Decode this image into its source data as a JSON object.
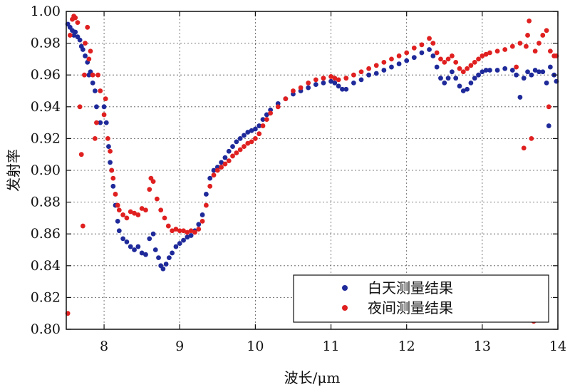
{
  "chart_data": {
    "type": "scatter",
    "title": "",
    "xlabel": "波长/μm",
    "ylabel": "发射率",
    "xlim": [
      7.5,
      14
    ],
    "ylim": [
      0.8,
      1.0
    ],
    "xticks": [
      8,
      9,
      10,
      11,
      12,
      13,
      14
    ],
    "yticks": [
      0.8,
      0.82,
      0.84,
      0.86,
      0.88,
      0.9,
      0.92,
      0.94,
      0.96,
      0.98,
      1.0
    ],
    "grid": true,
    "legend_position": "bottom-right",
    "series": [
      {
        "name": "白天测量结果",
        "color": "#1f2a9a",
        "points": [
          [
            7.52,
            0.992
          ],
          [
            7.55,
            0.99
          ],
          [
            7.58,
            0.988
          ],
          [
            7.6,
            0.985
          ],
          [
            7.62,
            0.987
          ],
          [
            7.65,
            0.984
          ],
          [
            7.68,
            0.982
          ],
          [
            7.7,
            0.978
          ],
          [
            7.72,
            0.976
          ],
          [
            7.75,
            0.972
          ],
          [
            7.78,
            0.968
          ],
          [
            7.8,
            0.96
          ],
          [
            7.82,
            0.962
          ],
          [
            7.85,
            0.955
          ],
          [
            7.88,
            0.95
          ],
          [
            7.9,
            0.94
          ],
          [
            7.95,
            0.93
          ],
          [
            8.0,
            0.94
          ],
          [
            8.03,
            0.93
          ],
          [
            8.06,
            0.915
          ],
          [
            8.08,
            0.905
          ],
          [
            8.1,
            0.9
          ],
          [
            8.12,
            0.89
          ],
          [
            8.15,
            0.878
          ],
          [
            8.18,
            0.868
          ],
          [
            8.2,
            0.862
          ],
          [
            8.25,
            0.857
          ],
          [
            8.3,
            0.855
          ],
          [
            8.35,
            0.852
          ],
          [
            8.4,
            0.85
          ],
          [
            8.45,
            0.852
          ],
          [
            8.5,
            0.848
          ],
          [
            8.55,
            0.847
          ],
          [
            8.6,
            0.857
          ],
          [
            8.65,
            0.86
          ],
          [
            8.68,
            0.85
          ],
          [
            8.72,
            0.845
          ],
          [
            8.75,
            0.84
          ],
          [
            8.78,
            0.838
          ],
          [
            8.82,
            0.841
          ],
          [
            8.86,
            0.845
          ],
          [
            8.9,
            0.848
          ],
          [
            8.95,
            0.852
          ],
          [
            9.0,
            0.854
          ],
          [
            9.05,
            0.856
          ],
          [
            9.1,
            0.858
          ],
          [
            9.15,
            0.859
          ],
          [
            9.2,
            0.862
          ],
          [
            9.25,
            0.866
          ],
          [
            9.3,
            0.872
          ],
          [
            9.35,
            0.885
          ],
          [
            9.4,
            0.895
          ],
          [
            9.45,
            0.9
          ],
          [
            9.5,
            0.902
          ],
          [
            9.55,
            0.905
          ],
          [
            9.6,
            0.908
          ],
          [
            9.65,
            0.912
          ],
          [
            9.7,
            0.915
          ],
          [
            9.75,
            0.918
          ],
          [
            9.8,
            0.92
          ],
          [
            9.85,
            0.922
          ],
          [
            9.9,
            0.924
          ],
          [
            9.95,
            0.925
          ],
          [
            10.0,
            0.926
          ],
          [
            10.05,
            0.928
          ],
          [
            10.1,
            0.932
          ],
          [
            10.15,
            0.935
          ],
          [
            10.2,
            0.938
          ],
          [
            10.3,
            0.942
          ],
          [
            10.4,
            0.945
          ],
          [
            10.5,
            0.948
          ],
          [
            10.6,
            0.95
          ],
          [
            10.7,
            0.952
          ],
          [
            10.8,
            0.954
          ],
          [
            10.9,
            0.955
          ],
          [
            11.0,
            0.956
          ],
          [
            11.05,
            0.955
          ],
          [
            11.1,
            0.953
          ],
          [
            11.15,
            0.951
          ],
          [
            11.2,
            0.951
          ],
          [
            11.3,
            0.955
          ],
          [
            11.4,
            0.957
          ],
          [
            11.5,
            0.96
          ],
          [
            11.6,
            0.961
          ],
          [
            11.7,
            0.963
          ],
          [
            11.8,
            0.965
          ],
          [
            11.9,
            0.967
          ],
          [
            12.0,
            0.969
          ],
          [
            12.1,
            0.971
          ],
          [
            12.2,
            0.974
          ],
          [
            12.3,
            0.976
          ],
          [
            12.35,
            0.972
          ],
          [
            12.4,
            0.965
          ],
          [
            12.45,
            0.958
          ],
          [
            12.5,
            0.955
          ],
          [
            12.55,
            0.958
          ],
          [
            12.6,
            0.962
          ],
          [
            12.65,
            0.958
          ],
          [
            12.7,
            0.953
          ],
          [
            12.75,
            0.95
          ],
          [
            12.8,
            0.951
          ],
          [
            12.85,
            0.955
          ],
          [
            12.9,
            0.958
          ],
          [
            12.95,
            0.96
          ],
          [
            13.0,
            0.962
          ],
          [
            13.05,
            0.963
          ],
          [
            13.1,
            0.963
          ],
          [
            13.2,
            0.963
          ],
          [
            13.3,
            0.964
          ],
          [
            13.4,
            0.963
          ],
          [
            13.45,
            0.96
          ],
          [
            13.5,
            0.946
          ],
          [
            13.55,
            0.958
          ],
          [
            13.6,
            0.962
          ],
          [
            13.65,
            0.96
          ],
          [
            13.7,
            0.963
          ],
          [
            13.75,
            0.962
          ],
          [
            13.8,
            0.962
          ],
          [
            13.85,
            0.955
          ],
          [
            13.9,
            0.965
          ],
          [
            13.95,
            0.96
          ],
          [
            13.98,
            0.956
          ],
          [
            13.88,
            0.928
          ]
        ]
      },
      {
        "name": "夜间测量结果",
        "color": "#e02020",
        "points": [
          [
            7.52,
            0.81
          ],
          [
            7.55,
            0.985
          ],
          [
            7.58,
            0.995
          ],
          [
            7.6,
            0.997
          ],
          [
            7.62,
            0.996
          ],
          [
            7.65,
            0.993
          ],
          [
            7.68,
            0.94
          ],
          [
            7.7,
            0.91
          ],
          [
            7.72,
            0.865
          ],
          [
            7.74,
            0.96
          ],
          [
            7.75,
            0.98
          ],
          [
            7.78,
            0.99
          ],
          [
            7.8,
            0.97
          ],
          [
            7.82,
            0.975
          ],
          [
            7.85,
            0.96
          ],
          [
            7.88,
            0.92
          ],
          [
            7.9,
            0.93
          ],
          [
            7.92,
            0.96
          ],
          [
            7.95,
            0.95
          ],
          [
            8.0,
            0.935
          ],
          [
            8.02,
            0.945
          ],
          [
            8.05,
            0.92
          ],
          [
            8.08,
            0.912
          ],
          [
            8.1,
            0.9
          ],
          [
            8.12,
            0.895
          ],
          [
            8.15,
            0.885
          ],
          [
            8.18,
            0.878
          ],
          [
            8.2,
            0.875
          ],
          [
            8.25,
            0.872
          ],
          [
            8.3,
            0.87
          ],
          [
            8.35,
            0.874
          ],
          [
            8.4,
            0.873
          ],
          [
            8.45,
            0.872
          ],
          [
            8.5,
            0.876
          ],
          [
            8.55,
            0.875
          ],
          [
            8.6,
            0.888
          ],
          [
            8.62,
            0.895
          ],
          [
            8.65,
            0.893
          ],
          [
            8.7,
            0.882
          ],
          [
            8.75,
            0.875
          ],
          [
            8.8,
            0.87
          ],
          [
            8.85,
            0.865
          ],
          [
            8.9,
            0.862
          ],
          [
            8.95,
            0.863
          ],
          [
            9.0,
            0.862
          ],
          [
            9.05,
            0.862
          ],
          [
            9.1,
            0.861
          ],
          [
            9.15,
            0.862
          ],
          [
            9.2,
            0.861
          ],
          [
            9.25,
            0.863
          ],
          [
            9.3,
            0.868
          ],
          [
            9.35,
            0.878
          ],
          [
            9.4,
            0.89
          ],
          [
            9.45,
            0.897
          ],
          [
            9.5,
            0.9
          ],
          [
            9.55,
            0.902
          ],
          [
            9.6,
            0.904
          ],
          [
            9.65,
            0.906
          ],
          [
            9.7,
            0.909
          ],
          [
            9.75,
            0.911
          ],
          [
            9.8,
            0.913
          ],
          [
            9.85,
            0.915
          ],
          [
            9.9,
            0.917
          ],
          [
            9.95,
            0.918
          ],
          [
            10.0,
            0.92
          ],
          [
            10.05,
            0.923
          ],
          [
            10.1,
            0.928
          ],
          [
            10.15,
            0.932
          ],
          [
            10.2,
            0.936
          ],
          [
            10.3,
            0.94
          ],
          [
            10.4,
            0.945
          ],
          [
            10.5,
            0.95
          ],
          [
            10.6,
            0.952
          ],
          [
            10.7,
            0.955
          ],
          [
            10.8,
            0.957
          ],
          [
            10.9,
            0.958
          ],
          [
            11.0,
            0.959
          ],
          [
            11.05,
            0.958
          ],
          [
            11.1,
            0.957
          ],
          [
            11.2,
            0.958
          ],
          [
            11.3,
            0.96
          ],
          [
            11.4,
            0.962
          ],
          [
            11.5,
            0.964
          ],
          [
            11.6,
            0.966
          ],
          [
            11.7,
            0.968
          ],
          [
            11.8,
            0.97
          ],
          [
            11.9,
            0.972
          ],
          [
            12.0,
            0.974
          ],
          [
            12.1,
            0.977
          ],
          [
            12.2,
            0.979
          ],
          [
            12.3,
            0.983
          ],
          [
            12.35,
            0.98
          ],
          [
            12.4,
            0.974
          ],
          [
            12.45,
            0.97
          ],
          [
            12.5,
            0.968
          ],
          [
            12.55,
            0.97
          ],
          [
            12.6,
            0.972
          ],
          [
            12.65,
            0.968
          ],
          [
            12.7,
            0.964
          ],
          [
            12.75,
            0.962
          ],
          [
            12.8,
            0.964
          ],
          [
            12.85,
            0.966
          ],
          [
            12.9,
            0.968
          ],
          [
            12.95,
            0.97
          ],
          [
            13.0,
            0.972
          ],
          [
            13.05,
            0.973
          ],
          [
            13.1,
            0.974
          ],
          [
            13.2,
            0.975
          ],
          [
            13.3,
            0.976
          ],
          [
            13.4,
            0.978
          ],
          [
            13.45,
            0.965
          ],
          [
            13.5,
            0.98
          ],
          [
            13.55,
            0.914
          ],
          [
            13.58,
            0.978
          ],
          [
            13.6,
            0.985
          ],
          [
            13.62,
            0.994
          ],
          [
            13.65,
            0.92
          ],
          [
            13.68,
            0.805
          ],
          [
            13.7,
            0.975
          ],
          [
            13.75,
            0.98
          ],
          [
            13.8,
            0.985
          ],
          [
            13.85,
            0.988
          ],
          [
            13.88,
            0.94
          ],
          [
            13.9,
            0.975
          ],
          [
            13.95,
            0.972
          ],
          [
            13.98,
            0.972
          ]
        ]
      }
    ]
  }
}
